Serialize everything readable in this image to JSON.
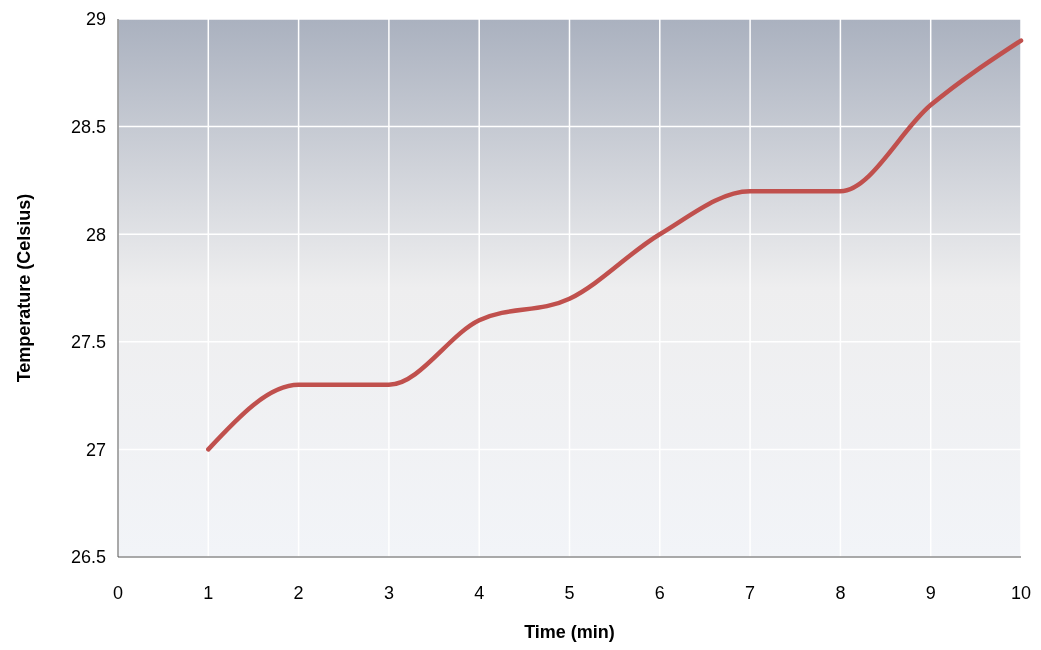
{
  "chart_data": {
    "type": "line",
    "xlabel": "Time (min)",
    "ylabel": "Temperature (Celsius)",
    "x": [
      1,
      2,
      3,
      4,
      5,
      6,
      7,
      8,
      9,
      10
    ],
    "series": [
      {
        "color": "#c0504d",
        "values": [
          27,
          27.3,
          27.3,
          27.6,
          27.7,
          28,
          28.2,
          28.2,
          28.6,
          28.9
        ]
      }
    ],
    "xlim": [
      0,
      10
    ],
    "xticks": [
      0,
      1,
      2,
      3,
      4,
      5,
      6,
      7,
      8,
      9,
      10
    ],
    "ylim": [
      26.5,
      29
    ],
    "yticks": [
      26.5,
      27,
      27.5,
      28,
      28.5,
      29
    ],
    "grid": true
  }
}
